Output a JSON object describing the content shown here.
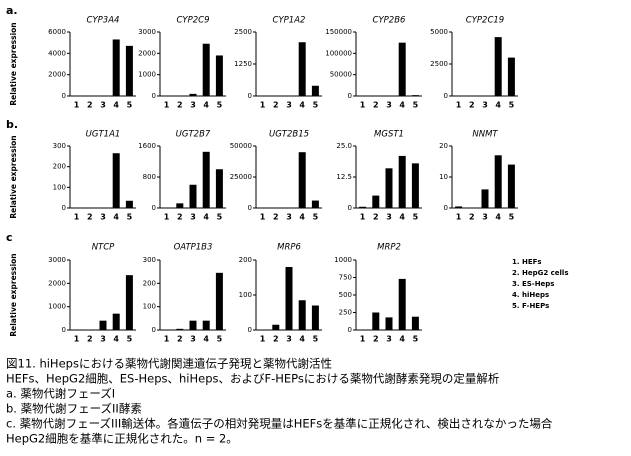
{
  "sections": [
    {
      "label": "a.",
      "ylabel": "Relative expression"
    },
    {
      "label": "b.",
      "ylabel": "Relative expression"
    },
    {
      "label": "c",
      "ylabel": "Relative expression"
    }
  ],
  "chart_data": [
    {
      "type": "bar",
      "title": "CYP3A4",
      "categories": [
        "1",
        "2",
        "3",
        "4",
        "5"
      ],
      "values": [
        0,
        0,
        0,
        5300,
        4700
      ],
      "ylim": [
        0,
        6000
      ],
      "yticks": [
        0,
        2000,
        4000,
        6000
      ],
      "color": "#000000"
    },
    {
      "type": "bar",
      "title": "CYP2C9",
      "categories": [
        "1",
        "2",
        "3",
        "4",
        "5"
      ],
      "values": [
        0,
        0,
        100,
        2450,
        1900
      ],
      "ylim": [
        0,
        3000
      ],
      "yticks": [
        0,
        1000,
        2000,
        3000
      ],
      "color": "#000000"
    },
    {
      "type": "bar",
      "title": "CYP1A2",
      "categories": [
        "1",
        "2",
        "3",
        "4",
        "5"
      ],
      "values": [
        0,
        0,
        0,
        2100,
        400
      ],
      "ylim": [
        0,
        2500
      ],
      "yticks": [
        0,
        1250,
        2500
      ],
      "color": "#000000"
    },
    {
      "type": "bar",
      "title": "CYP2B6",
      "categories": [
        "1",
        "2",
        "3",
        "4",
        "5"
      ],
      "values": [
        0,
        0,
        0,
        125000,
        2000
      ],
      "ylim": [
        0,
        150000
      ],
      "yticks": [
        0,
        50000,
        100000,
        150000
      ],
      "color": "#000000"
    },
    {
      "type": "bar",
      "title": "CYP2C19",
      "categories": [
        "1",
        "2",
        "3",
        "4",
        "5"
      ],
      "values": [
        0,
        0,
        0,
        4600,
        3000
      ],
      "ylim": [
        0,
        5000
      ],
      "yticks": [
        0,
        2500,
        5000
      ],
      "color": "#000000"
    },
    {
      "type": "bar",
      "title": "UGT1A1",
      "categories": [
        "1",
        "2",
        "3",
        "4",
        "5"
      ],
      "values": [
        0,
        0,
        0,
        265,
        35
      ],
      "ylim": [
        0,
        300
      ],
      "yticks": [
        0,
        100,
        200,
        300
      ],
      "color": "#000000"
    },
    {
      "type": "bar",
      "title": "UGT2B7",
      "categories": [
        "1",
        "2",
        "3",
        "4",
        "5"
      ],
      "values": [
        0,
        120,
        600,
        1450,
        1000
      ],
      "ylim": [
        0,
        1600
      ],
      "yticks": [
        0,
        800,
        1600
      ],
      "color": "#000000"
    },
    {
      "type": "bar",
      "title": "UGT2B15",
      "categories": [
        "1",
        "2",
        "3",
        "4",
        "5"
      ],
      "values": [
        0,
        0,
        0,
        45000,
        6000
      ],
      "ylim": [
        0,
        50000
      ],
      "yticks": [
        0,
        25000,
        50000
      ],
      "color": "#000000"
    },
    {
      "type": "bar",
      "title": "MGST1",
      "categories": [
        "1",
        "2",
        "3",
        "4",
        "5"
      ],
      "values": [
        0.5,
        5,
        16,
        21,
        18
      ],
      "ylim": [
        0,
        25
      ],
      "yticks": [
        0,
        12.5,
        {
          "value": 25,
          "label": "25.0"
        }
      ],
      "color": "#000000"
    },
    {
      "type": "bar",
      "title": "NNMT",
      "categories": [
        "1",
        "2",
        "3",
        "4",
        "5"
      ],
      "values": [
        0.5,
        0,
        6,
        17,
        14
      ],
      "ylim": [
        0,
        20
      ],
      "yticks": [
        0,
        10,
        20
      ],
      "color": "#000000"
    },
    {
      "type": "bar",
      "title": "NTCP",
      "categories": [
        "1",
        "2",
        "3",
        "4",
        "5"
      ],
      "values": [
        0,
        0,
        400,
        700,
        2350
      ],
      "ylim": [
        0,
        3000
      ],
      "yticks": [
        0,
        1000,
        2000,
        3000
      ],
      "color": "#000000"
    },
    {
      "type": "bar",
      "title": "OATP1B3",
      "categories": [
        "1",
        "2",
        "3",
        "4",
        "5"
      ],
      "values": [
        0,
        5,
        40,
        40,
        245
      ],
      "ylim": [
        0,
        300
      ],
      "yticks": [
        0,
        100,
        200,
        300
      ],
      "color": "#000000"
    },
    {
      "type": "bar",
      "title": "MRP6",
      "categories": [
        "1",
        "2",
        "3",
        "4",
        "5"
      ],
      "values": [
        0,
        15,
        180,
        85,
        70
      ],
      "ylim": [
        0,
        200
      ],
      "yticks": [
        0,
        100,
        200
      ],
      "color": "#000000"
    },
    {
      "type": "bar",
      "title": "MRP2",
      "categories": [
        "1",
        "2",
        "3",
        "4",
        "5"
      ],
      "values": [
        0,
        250,
        180,
        730,
        190
      ],
      "ylim": [
        0,
        1000
      ],
      "yticks": [
        0,
        250,
        500,
        750,
        1000
      ],
      "color": "#000000"
    }
  ],
  "legend": [
    "1. HEFs",
    "2. HepG2 cells",
    "3. ES-Heps",
    "4. hiHeps",
    "5. F-HEPs"
  ],
  "caption": [
    "図11. hiHepsにおける薬物代謝関連遺伝子発現と薬物代謝活性",
    "HEFs、HepG2細胞、ES-Heps、hiHeps、およびF-HEPsにおける薬物代謝酵素発現の定量解析",
    "a.  薬物代謝フェーズI",
    "b.  薬物代謝フェーズII酵素",
    "c.  薬物代謝フェーズIII輸送体。各遺伝子の相対発現量はHEFsを基準に正規化され、検出されなかった場合",
    "HepG2細胞を基準に正規化された。n = 2。"
  ]
}
